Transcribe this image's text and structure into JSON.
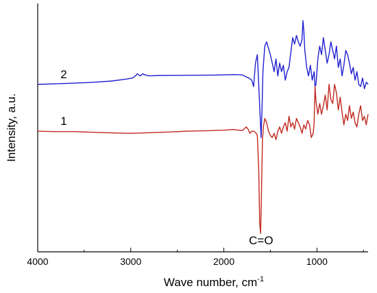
{
  "chart_data": {
    "type": "line",
    "xlabel": "Wave number, cm",
    "xlabel_superscript": "-1",
    "ylabel": "Intensity, a.u.",
    "x_reversed": true,
    "xlim": [
      4000,
      450
    ],
    "ylim": [
      0,
      100
    ],
    "x_ticks": [
      4000,
      3000,
      2000,
      1000
    ],
    "x_tick_labels": [
      "4000",
      "3000",
      "2000",
      "1000"
    ],
    "y_ticks_labeled": false,
    "grid": false,
    "series": [
      {
        "name": "2",
        "color": "#1f1fd0",
        "x": [
          4000,
          3800,
          3600,
          3400,
          3200,
          3050,
          2980,
          2950,
          2930,
          2900,
          2870,
          2850,
          2800,
          2700,
          2400,
          2100,
          1900,
          1800,
          1760,
          1730,
          1700,
          1680,
          1660,
          1640,
          1630,
          1615,
          1600,
          1590,
          1580,
          1570,
          1560,
          1540,
          1520,
          1500,
          1480,
          1460,
          1440,
          1420,
          1400,
          1380,
          1360,
          1340,
          1320,
          1300,
          1280,
          1260,
          1240,
          1220,
          1200,
          1180,
          1160,
          1150,
          1140,
          1130,
          1110,
          1090,
          1070,
          1050,
          1030,
          1020,
          1010,
          990,
          970,
          950,
          930,
          910,
          890,
          870,
          850,
          830,
          810,
          790,
          770,
          750,
          730,
          710,
          690,
          670,
          650,
          630,
          610,
          590,
          570,
          550,
          530,
          510,
          490,
          470,
          450
        ],
        "y": [
          70.0,
          70.3,
          70.6,
          71.0,
          71.6,
          72.5,
          73.0,
          74.0,
          75.0,
          74.0,
          75.0,
          74.5,
          74.0,
          74.2,
          74.3,
          74.4,
          74.6,
          74.5,
          73.5,
          73.0,
          72.0,
          69.0,
          80.0,
          84.0,
          75.0,
          60.0,
          45.0,
          58.0,
          76.0,
          82.0,
          88.0,
          90.0,
          87.0,
          84.0,
          80.0,
          76.0,
          82.0,
          74.0,
          80.0,
          76.0,
          79.0,
          72.0,
          76.0,
          78.0,
          85.0,
          92.0,
          89.0,
          93.0,
          90.0,
          88.0,
          91.0,
          100.0,
          95.0,
          86.0,
          78.0,
          74.0,
          79.0,
          72.0,
          76.0,
          69.0,
          70.0,
          82.0,
          88.0,
          84.0,
          92.0,
          86.0,
          80.0,
          84.0,
          90.0,
          86.0,
          82.0,
          88.0,
          78.0,
          82.0,
          74.0,
          79.0,
          86.0,
          84.0,
          80.0,
          75.0,
          78.0,
          72.0,
          76.0,
          70.0,
          69.0,
          73.0,
          68.0,
          71.0,
          70.0
        ]
      },
      {
        "name": "1",
        "color": "#c0281e",
        "x": [
          4000,
          3800,
          3600,
          3400,
          3200,
          3000,
          2800,
          2600,
          2400,
          2200,
          2000,
          1900,
          1800,
          1760,
          1740,
          1720,
          1700,
          1680,
          1660,
          1640,
          1625,
          1615,
          1605,
          1595,
          1585,
          1575,
          1560,
          1540,
          1520,
          1500,
          1480,
          1460,
          1440,
          1420,
          1400,
          1380,
          1360,
          1340,
          1320,
          1300,
          1280,
          1260,
          1240,
          1220,
          1200,
          1180,
          1160,
          1140,
          1120,
          1100,
          1080,
          1060,
          1040,
          1030,
          1020,
          1010,
          990,
          970,
          950,
          930,
          910,
          890,
          870,
          850,
          830,
          810,
          790,
          770,
          750,
          730,
          710,
          690,
          670,
          650,
          630,
          610,
          590,
          570,
          550,
          530,
          510,
          490,
          470,
          450
        ],
        "y": [
          48.0,
          47.8,
          47.8,
          47.5,
          47.2,
          47.0,
          47.3,
          47.6,
          48.0,
          48.2,
          48.5,
          48.8,
          48.3,
          50.0,
          49.0,
          47.0,
          48.0,
          48.0,
          47.5,
          46.0,
          30.0,
          5.0,
          0.0,
          20.0,
          44.0,
          50.0,
          54.0,
          52.0,
          48.0,
          46.0,
          45.0,
          47.0,
          44.0,
          48.0,
          50.0,
          47.0,
          50.0,
          52.0,
          48.0,
          55.0,
          50.0,
          52.0,
          49.0,
          54.0,
          52.0,
          50.0,
          47.0,
          51.0,
          49.0,
          53.0,
          51.0,
          45.0,
          47.0,
          52.0,
          69.0,
          62.0,
          56.0,
          61.0,
          56.0,
          60.0,
          65.0,
          58.0,
          70.0,
          63.0,
          61.0,
          70.0,
          66.0,
          58.0,
          64.0,
          57.0,
          51.0,
          56.0,
          53.0,
          60.0,
          54.0,
          57.0,
          52.0,
          50.0,
          56.0,
          60.0,
          53.0,
          55.0,
          51.0,
          56.0
        ]
      }
    ],
    "annotations": [
      {
        "text": "C=O",
        "x": 1600
      }
    ]
  }
}
